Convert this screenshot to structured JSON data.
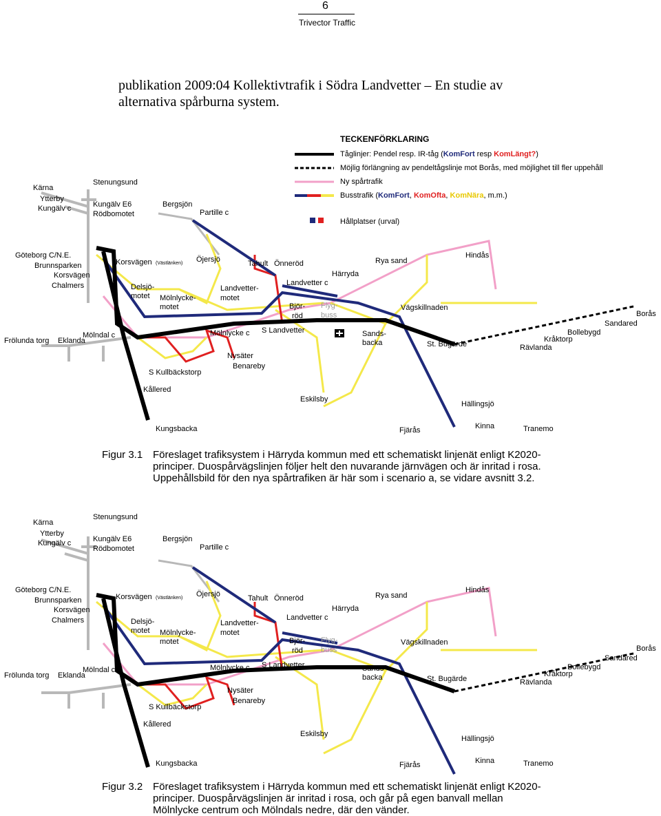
{
  "header": {
    "page_number": "6",
    "org": "Trivector Traffic"
  },
  "intro": "publikation 2009:04 Kollektivtrafik i Södra Landvetter – En studie av alternativa spårburna system.",
  "legend": {
    "title": "TECKENFÖRKLARING",
    "row1_a": "Tåglinjer: Pendel resp. IR-tåg (",
    "row1_b": "KomFort",
    "row1_c": " resp ",
    "row1_d": "KomLängt?",
    "row1_e": ")",
    "row2": "Möjlig förlängning av pendeltågslinje mot Borås, med möjlighet till fler uppehåll",
    "row3": "Ny spårtrafik",
    "row4_a": "Busstrafik (",
    "row4_b": "KomFort",
    "row4_c": ", ",
    "row4_d": "KomOfta",
    "row4_e": ", ",
    "row4_f": "KomNära",
    "row4_g": ", m.m.)",
    "row5": "Hållplatser (urval)"
  },
  "stations": {
    "karna": "Kärna",
    "stenungsund": "Stenungsund",
    "ytterby": "Ytterby",
    "kungalv_c": "Kungälv c",
    "kungalv_e6": "Kungälv E6",
    "rodbomotet": "Rödbomotet",
    "bergsjon": "Bergsjön",
    "partille": "Partille c",
    "goteborg": "Göteborg C/N.E.",
    "brunnsparken": "Brunnsparken",
    "korsvagen": "Korsvägen",
    "chalmers": "Chalmers",
    "korsvagen2": "Korsvägen",
    "vastlanken": "(Västlänken)",
    "ojersjo": "Öjersjö",
    "delsjo1": "Delsjö-",
    "delsjo2": "motet",
    "molnlycke1": "Mölnlycke-",
    "molnlycke2": "motet",
    "landvetter1": "Landvetter-",
    "landvetter2": "motet",
    "tahult": "Tahult",
    "onneröd": "Önneröd",
    "harryda": "Härryda",
    "landvetter_c": "Landvetter c",
    "rya_sand": "Rya sand",
    "hindas": "Hindås",
    "bjor": "Björ-",
    "rod": "röd",
    "flyg": "Flyg-",
    "buss": "buss",
    "vagskillnaden": "Vägskillnaden",
    "boras": "Borås",
    "sandared": "Sandared",
    "bollebygd": "Bollebygd",
    "kraktorp": "Kråktorp",
    "ravlanda": "Rävlanda",
    "st_bugarde": "St. Bugärde",
    "sands": "Sands-",
    "backa": "backa",
    "molndal_c": "Mölndal c",
    "frolunda": "Frölunda torg",
    "eklanda": "Eklanda",
    "molnlycke_c": "Mölnlycke c",
    "s_landvetter": "S Landvetter",
    "nysater": "Nysäter",
    "benareby": "Benareby",
    "s_kullback": "S Kullbäckstorp",
    "kallered": "Kållered",
    "kungsbacka": "Kungsbacka",
    "eskilsby": "Eskilsby",
    "hallingsjo": "Hällingsjö",
    "fjaras": "Fjärås",
    "kinna": "Kinna",
    "tranemo": "Tranemo"
  },
  "captions": {
    "fig1_label": "Figur 3.1",
    "fig1_text": "Föreslaget trafiksystem i Härryda kommun med ett schematiskt linjenät enligt K2020-principer. Duospårvägslinjen följer helt den nuvarande järnvägen och är inritad i rosa. Uppehållsbild för den nya spårtrafiken är här som i scenario a, se vidare avsnitt 3.2.",
    "fig2_label": "Figur 3.2",
    "fig2_text": "Föreslaget trafiksystem i Härryda kommun med ett schematiskt linjenät enligt K2020-principer. Duospårvägslinjen är inritad i rosa, och går på egen banvall mellan Mölnlycke centrum och Mölndals nedre, där den vänder."
  },
  "colors": {
    "rail": "#000000",
    "bus_komfort": "#1f2a7a",
    "bus_komofta": "#e02020",
    "bus_komnara": "#f4e84a",
    "spar": "#f2a0c8",
    "grey": "#b8b8b8"
  }
}
